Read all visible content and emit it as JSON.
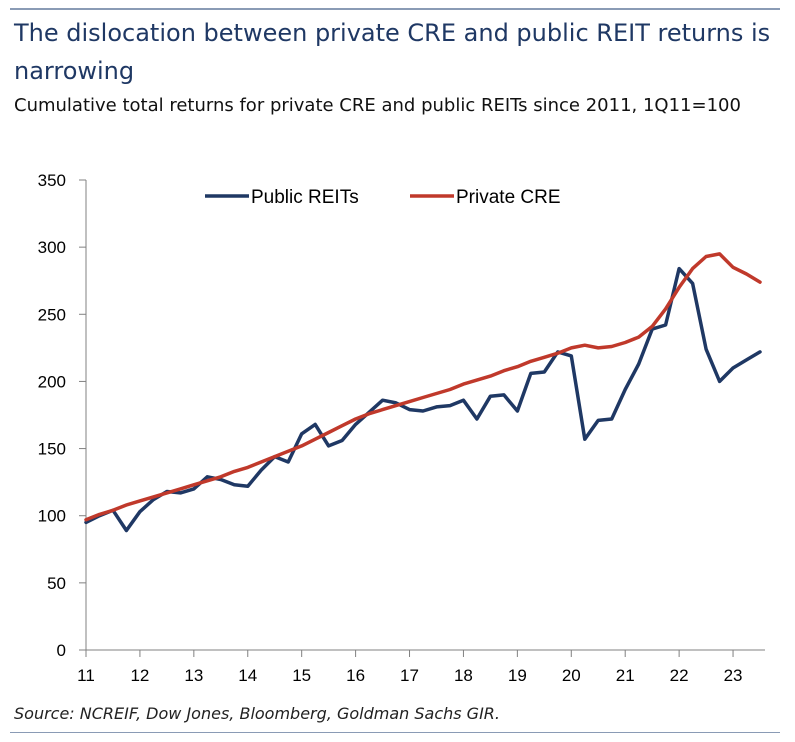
{
  "title": "The dislocation between private CRE and public REIT returns is narrowing",
  "subtitle": "Cumulative total returns for private CRE and public REITs since 2011, 1Q11=100",
  "source": "Source: NCREIF, Dow Jones, Bloomberg, Goldman Sachs GIR.",
  "chart_data": {
    "type": "line",
    "title": "The dislocation between private CRE and public REIT returns is narrowing",
    "subtitle": "Cumulative total returns for private CRE and public REITs since 2011, 1Q11=100",
    "xlabel": "",
    "ylabel": "",
    "ylim": [
      0,
      350
    ],
    "xlim": [
      2011,
      2023.5
    ],
    "x_ticks": [
      {
        "value": 2011,
        "label": "11"
      },
      {
        "value": 2012,
        "label": "12"
      },
      {
        "value": 2013,
        "label": "13"
      },
      {
        "value": 2014,
        "label": "14"
      },
      {
        "value": 2015,
        "label": "15"
      },
      {
        "value": 2016,
        "label": "16"
      },
      {
        "value": 2017,
        "label": "17"
      },
      {
        "value": 2018,
        "label": "18"
      },
      {
        "value": 2019,
        "label": "19"
      },
      {
        "value": 2020,
        "label": "20"
      },
      {
        "value": 2021,
        "label": "21"
      },
      {
        "value": 2022,
        "label": "22"
      },
      {
        "value": 2023,
        "label": "23"
      }
    ],
    "y_ticks": [
      0,
      50,
      100,
      150,
      200,
      250,
      300,
      350
    ],
    "grid": false,
    "legend_position": "top-center",
    "series": [
      {
        "name": "Public REITs",
        "color": "#1f3864",
        "points": [
          [
            2011.0,
            95
          ],
          [
            2011.25,
            100
          ],
          [
            2011.5,
            104
          ],
          [
            2011.75,
            89
          ],
          [
            2012.0,
            103
          ],
          [
            2012.25,
            112
          ],
          [
            2012.5,
            118
          ],
          [
            2012.75,
            117
          ],
          [
            2013.0,
            120
          ],
          [
            2013.25,
            129
          ],
          [
            2013.5,
            127
          ],
          [
            2013.75,
            123
          ],
          [
            2014.0,
            122
          ],
          [
            2014.25,
            134
          ],
          [
            2014.5,
            144
          ],
          [
            2014.75,
            140
          ],
          [
            2015.0,
            161
          ],
          [
            2015.25,
            168
          ],
          [
            2015.5,
            152
          ],
          [
            2015.75,
            156
          ],
          [
            2016.0,
            168
          ],
          [
            2016.25,
            177
          ],
          [
            2016.5,
            186
          ],
          [
            2016.75,
            184
          ],
          [
            2017.0,
            179
          ],
          [
            2017.25,
            178
          ],
          [
            2017.5,
            181
          ],
          [
            2017.75,
            182
          ],
          [
            2018.0,
            186
          ],
          [
            2018.25,
            172
          ],
          [
            2018.5,
            189
          ],
          [
            2018.75,
            190
          ],
          [
            2019.0,
            178
          ],
          [
            2019.25,
            206
          ],
          [
            2019.5,
            207
          ],
          [
            2019.75,
            222
          ],
          [
            2020.0,
            219
          ],
          [
            2020.25,
            157
          ],
          [
            2020.5,
            171
          ],
          [
            2020.75,
            172
          ],
          [
            2021.0,
            194
          ],
          [
            2021.25,
            213
          ],
          [
            2021.5,
            239
          ],
          [
            2021.75,
            242
          ],
          [
            2022.0,
            284
          ],
          [
            2022.25,
            273
          ],
          [
            2022.5,
            224
          ],
          [
            2022.75,
            200
          ],
          [
            2023.0,
            210
          ],
          [
            2023.25,
            216
          ],
          [
            2023.5,
            222
          ]
        ]
      },
      {
        "name": "Private CRE",
        "color": "#c0392b",
        "points": [
          [
            2011.0,
            97
          ],
          [
            2011.25,
            101
          ],
          [
            2011.5,
            104
          ],
          [
            2011.75,
            108
          ],
          [
            2012.0,
            111
          ],
          [
            2012.25,
            114
          ],
          [
            2012.5,
            117
          ],
          [
            2012.75,
            120
          ],
          [
            2013.0,
            123
          ],
          [
            2013.25,
            126
          ],
          [
            2013.5,
            129
          ],
          [
            2013.75,
            133
          ],
          [
            2014.0,
            136
          ],
          [
            2014.25,
            140
          ],
          [
            2014.5,
            144
          ],
          [
            2014.75,
            148
          ],
          [
            2015.0,
            152
          ],
          [
            2015.25,
            157
          ],
          [
            2015.5,
            162
          ],
          [
            2015.75,
            167
          ],
          [
            2016.0,
            172
          ],
          [
            2016.25,
            176
          ],
          [
            2016.5,
            179
          ],
          [
            2016.75,
            182
          ],
          [
            2017.0,
            185
          ],
          [
            2017.25,
            188
          ],
          [
            2017.5,
            191
          ],
          [
            2017.75,
            194
          ],
          [
            2018.0,
            198
          ],
          [
            2018.25,
            201
          ],
          [
            2018.5,
            204
          ],
          [
            2018.75,
            208
          ],
          [
            2019.0,
            211
          ],
          [
            2019.25,
            215
          ],
          [
            2019.5,
            218
          ],
          [
            2019.75,
            221
          ],
          [
            2020.0,
            225
          ],
          [
            2020.25,
            227
          ],
          [
            2020.5,
            225
          ],
          [
            2020.75,
            226
          ],
          [
            2021.0,
            229
          ],
          [
            2021.25,
            233
          ],
          [
            2021.5,
            241
          ],
          [
            2021.75,
            254
          ],
          [
            2022.0,
            270
          ],
          [
            2022.25,
            284
          ],
          [
            2022.5,
            293
          ],
          [
            2022.75,
            295
          ],
          [
            2023.0,
            285
          ],
          [
            2023.25,
            280
          ],
          [
            2023.5,
            274
          ]
        ]
      }
    ]
  }
}
